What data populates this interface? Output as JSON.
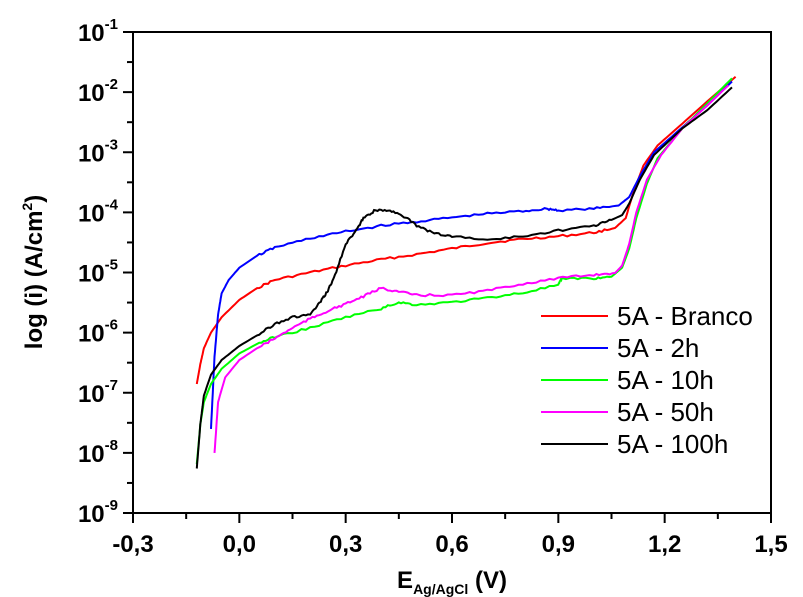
{
  "chart_data": {
    "type": "line",
    "xlabel": {
      "main": "E",
      "sub": "Ag/AgCl",
      "unit": " (V)"
    },
    "ylabel": {
      "main": "log (i) (A/cm",
      "sup": "2",
      "end": ")"
    },
    "xlim": [
      -0.3,
      1.5
    ],
    "ylim_log10": [
      -9,
      -1
    ],
    "yscale": "log",
    "grid": false,
    "legend_position": "bottom-right",
    "x_ticks": [
      {
        "value": -0.3,
        "label": "-0,3"
      },
      {
        "value": 0.0,
        "label": "0,0"
      },
      {
        "value": 0.3,
        "label": "0,3"
      },
      {
        "value": 0.6,
        "label": "0,6"
      },
      {
        "value": 0.9,
        "label": "0,9"
      },
      {
        "value": 1.2,
        "label": "1,2"
      },
      {
        "value": 1.5,
        "label": "1,5"
      }
    ],
    "y_ticks": [
      {
        "exp": -1,
        "base": "10",
        "sup": "-1"
      },
      {
        "exp": -2,
        "base": "10",
        "sup": "-2"
      },
      {
        "exp": -3,
        "base": "10",
        "sup": "-3"
      },
      {
        "exp": -4,
        "base": "10",
        "sup": "-4"
      },
      {
        "exp": -5,
        "base": "10",
        "sup": "-5"
      },
      {
        "exp": -6,
        "base": "10",
        "sup": "-6"
      },
      {
        "exp": -7,
        "base": "10",
        "sup": "-7"
      },
      {
        "exp": -8,
        "base": "10",
        "sup": "-8"
      },
      {
        "exp": -9,
        "base": "10",
        "sup": "-9"
      }
    ],
    "series": [
      {
        "name": "5A - Branco",
        "color": "#ff0000",
        "points": [
          [
            -0.12,
            1.4e-07
          ],
          [
            -0.11,
            3e-07
          ],
          [
            -0.1,
            5.5e-07
          ],
          [
            -0.08,
            1e-06
          ],
          [
            -0.05,
            1.8e-06
          ],
          [
            0.0,
            3.5e-06
          ],
          [
            0.05,
            5.5e-06
          ],
          [
            0.1,
            7.5e-06
          ],
          [
            0.2,
            1e-05
          ],
          [
            0.3,
            1.3e-05
          ],
          [
            0.4,
            1.65e-05
          ],
          [
            0.5,
            2e-05
          ],
          [
            0.6,
            2.5e-05
          ],
          [
            0.7,
            3.1e-05
          ],
          [
            0.8,
            3.6e-05
          ],
          [
            0.9,
            4e-05
          ],
          [
            1.0,
            4.6e-05
          ],
          [
            1.06,
            5.5e-05
          ],
          [
            1.09,
            8e-05
          ],
          [
            1.11,
            0.0002
          ],
          [
            1.14,
            0.0006
          ],
          [
            1.18,
            0.0013
          ],
          [
            1.25,
            0.003
          ],
          [
            1.32,
            0.007
          ],
          [
            1.4,
            0.018
          ]
        ]
      },
      {
        "name": "5A - 2h",
        "color": "#0000ff",
        "points": [
          [
            -0.08,
            2.5e-08
          ],
          [
            -0.07,
            4e-07
          ],
          [
            -0.06,
            2e-06
          ],
          [
            -0.05,
            4.5e-06
          ],
          [
            -0.03,
            7.5e-06
          ],
          [
            0.0,
            1.2e-05
          ],
          [
            0.05,
            1.9e-05
          ],
          [
            0.1,
            2.6e-05
          ],
          [
            0.2,
            3.7e-05
          ],
          [
            0.3,
            4.8e-05
          ],
          [
            0.4,
            6e-05
          ],
          [
            0.5,
            7e-05
          ],
          [
            0.6,
            8.2e-05
          ],
          [
            0.7,
            9.5e-05
          ],
          [
            0.8,
            0.000105
          ],
          [
            0.87,
            0.000115
          ],
          [
            0.9,
            0.000108
          ],
          [
            1.0,
            0.000115
          ],
          [
            1.07,
            0.00013
          ],
          [
            1.1,
            0.00018
          ],
          [
            1.13,
            0.0004
          ],
          [
            1.17,
            0.001
          ],
          [
            1.25,
            0.0026
          ],
          [
            1.32,
            0.006
          ],
          [
            1.39,
            0.015
          ]
        ]
      },
      {
        "name": "5A - 10h",
        "color": "#00ff00",
        "points": [
          [
            -0.12,
            6.5e-09
          ],
          [
            -0.11,
            3e-08
          ],
          [
            -0.1,
            7e-08
          ],
          [
            -0.08,
            1.4e-07
          ],
          [
            -0.05,
            2.5e-07
          ],
          [
            0.0,
            4.5e-07
          ],
          [
            0.05,
            6.5e-07
          ],
          [
            0.1,
            8.5e-07
          ],
          [
            0.2,
            1.2e-06
          ],
          [
            0.3,
            1.8e-06
          ],
          [
            0.4,
            2.5e-06
          ],
          [
            0.45,
            3.2e-06
          ],
          [
            0.5,
            2.9e-06
          ],
          [
            0.6,
            3.2e-06
          ],
          [
            0.7,
            3.8e-06
          ],
          [
            0.8,
            4.6e-06
          ],
          [
            0.9,
            6.2e-06
          ],
          [
            0.91,
            8e-06
          ],
          [
            1.0,
            8e-06
          ],
          [
            1.05,
            8.5e-06
          ],
          [
            1.08,
            1.2e-05
          ],
          [
            1.1,
            2.5e-05
          ],
          [
            1.12,
            8e-05
          ],
          [
            1.15,
            0.0003
          ],
          [
            1.18,
            0.0008
          ],
          [
            1.25,
            0.0025
          ],
          [
            1.32,
            0.0065
          ],
          [
            1.39,
            0.017
          ]
        ]
      },
      {
        "name": "5A - 50h",
        "color": "#ff00ff",
        "points": [
          [
            -0.07,
            1e-08
          ],
          [
            -0.06,
            7e-08
          ],
          [
            -0.04,
            1.8e-07
          ],
          [
            0.0,
            3.5e-07
          ],
          [
            0.05,
            5.5e-07
          ],
          [
            0.1,
            8e-07
          ],
          [
            0.15,
            1.2e-06
          ],
          [
            0.2,
            1.7e-06
          ],
          [
            0.25,
            2.3e-06
          ],
          [
            0.3,
            3e-06
          ],
          [
            0.35,
            4e-06
          ],
          [
            0.4,
            5.5e-06
          ],
          [
            0.45,
            4.8e-06
          ],
          [
            0.5,
            4.2e-06
          ],
          [
            0.6,
            4.2e-06
          ],
          [
            0.7,
            5e-06
          ],
          [
            0.8,
            6.5e-06
          ],
          [
            0.9,
            8e-06
          ],
          [
            1.0,
            9.2e-06
          ],
          [
            1.06,
            9.8e-06
          ],
          [
            1.08,
            1.3e-05
          ],
          [
            1.1,
            3e-05
          ],
          [
            1.12,
            0.0001
          ],
          [
            1.15,
            0.00035
          ],
          [
            1.19,
            0.0009
          ],
          [
            1.25,
            0.0025
          ],
          [
            1.32,
            0.006
          ],
          [
            1.38,
            0.013
          ]
        ]
      },
      {
        "name": "5A - 100h",
        "color": "#000000",
        "points": [
          [
            -0.12,
            5.5e-09
          ],
          [
            -0.11,
            3e-08
          ],
          [
            -0.1,
            9e-08
          ],
          [
            -0.08,
            2e-07
          ],
          [
            -0.05,
            3.5e-07
          ],
          [
            0.0,
            6e-07
          ],
          [
            0.05,
            9e-07
          ],
          [
            0.1,
            1.4e-06
          ],
          [
            0.15,
            1.8e-06
          ],
          [
            0.2,
            2e-06
          ],
          [
            0.23,
            3.3e-06
          ],
          [
            0.25,
            5e-06
          ],
          [
            0.27,
            9e-06
          ],
          [
            0.3,
            3e-05
          ],
          [
            0.33,
            5e-05
          ],
          [
            0.35,
            8e-05
          ],
          [
            0.38,
            0.000105
          ],
          [
            0.42,
            0.00011
          ],
          [
            0.46,
            9e-05
          ],
          [
            0.5,
            6e-05
          ],
          [
            0.55,
            4.5e-05
          ],
          [
            0.6,
            4e-05
          ],
          [
            0.7,
            3.5e-05
          ],
          [
            0.8,
            4e-05
          ],
          [
            0.9,
            5e-05
          ],
          [
            1.0,
            6e-05
          ],
          [
            1.05,
            7.5e-05
          ],
          [
            1.08,
            9e-05
          ],
          [
            1.1,
            0.00014
          ],
          [
            1.13,
            0.00035
          ],
          [
            1.17,
            0.0009
          ],
          [
            1.25,
            0.0025
          ],
          [
            1.32,
            0.005
          ],
          [
            1.39,
            0.012
          ]
        ]
      }
    ]
  }
}
